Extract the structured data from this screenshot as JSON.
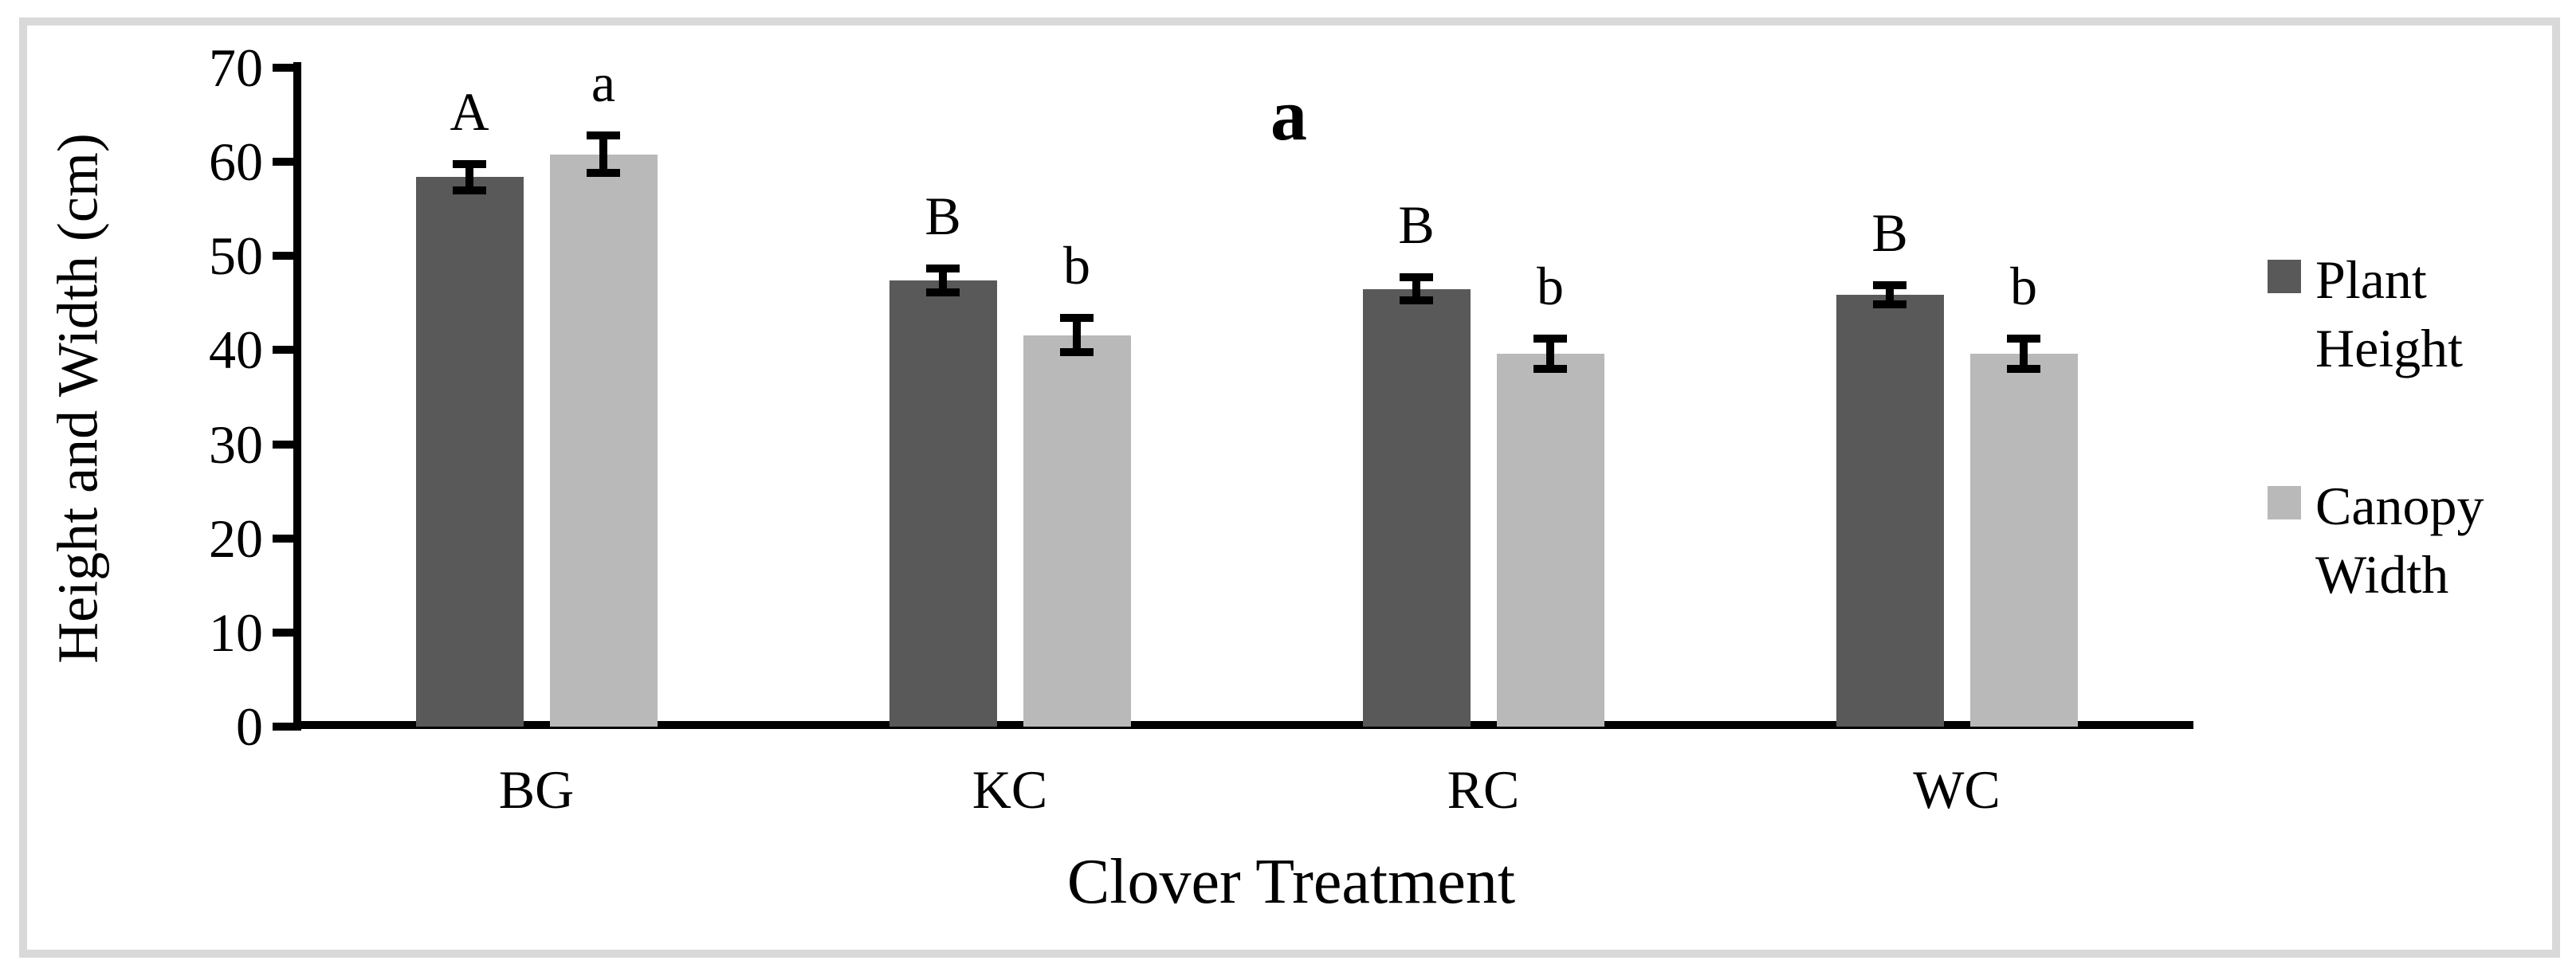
{
  "figure": {
    "panel_label": "a",
    "frame_color": "#d9d9d9",
    "background_color": "#ffffff",
    "axis_color": "#000000"
  },
  "chart_data": {
    "type": "bar",
    "title": "a",
    "xlabel": "Clover Treatment",
    "ylabel": "Height and Width (cm)",
    "ylim": [
      0,
      70
    ],
    "yticks": [
      0,
      10,
      20,
      30,
      40,
      50,
      60,
      70
    ],
    "grid": false,
    "legend_position": "right",
    "error_bars": true,
    "error_bar_color": "#000000",
    "categories": [
      "BG",
      "KC",
      "RC",
      "WC"
    ],
    "series": [
      {
        "name": "Plant Height",
        "color": "#595959",
        "values": [
          58.4,
          47.4,
          46.5,
          45.9
        ],
        "errors": [
          1.4,
          1.3,
          1.2,
          1.0
        ],
        "sig_letters": [
          "A",
          "B",
          "B",
          "B"
        ]
      },
      {
        "name": "Canopy Width",
        "color": "#b9b9b9",
        "values": [
          60.8,
          41.6,
          39.6,
          39.6
        ],
        "errors": [
          2.0,
          1.8,
          1.6,
          1.6
        ],
        "sig_letters": [
          "a",
          "b",
          "b",
          "b"
        ]
      }
    ]
  }
}
